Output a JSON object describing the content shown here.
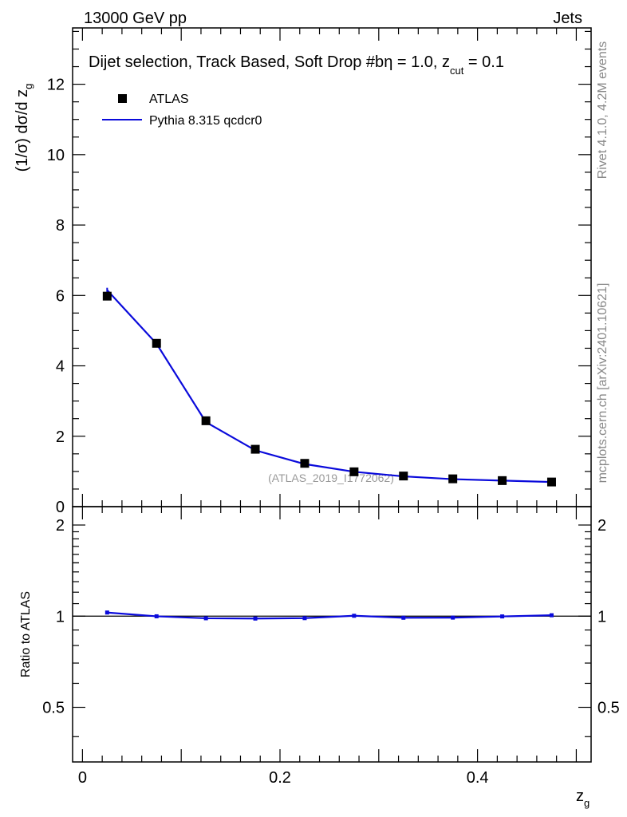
{
  "header": {
    "left": "13000 GeV pp",
    "right": "Jets"
  },
  "side_labels": {
    "rivet": "Rivet 4.1.0,  4.2M events",
    "mcplots": "mcplots.cern.ch [arXiv:2401.10621]"
  },
  "colors": {
    "data": "#000000",
    "mc": "#0a0adb",
    "axis": "#000000",
    "watermark": "#999999",
    "side_text": "#888888"
  },
  "chart_data": {
    "type": "line",
    "title": "Dijet selection, Track Based, Soft Drop #b",
    "title_suffix": "η = 1.0, z",
    "title_sub": "cut",
    "title_end": " = 0.1",
    "watermark": "(ATLAS_2019_I1772062)",
    "xlabel": "z",
    "xlabel_sub": "g",
    "ylabel": "(1/σ) dσ/d z",
    "ylabel_sub": "g",
    "ratio_ylabel": "Ratio to ATLAS",
    "xlim": [
      -0.01,
      0.515
    ],
    "ylim": [
      0,
      13.6
    ],
    "ratio_ylim": [
      0.33,
      2.3
    ],
    "x_ticks": [
      0,
      0.2,
      0.4
    ],
    "x_tick_labels": [
      "0",
      "0.2",
      "0.4"
    ],
    "y_ticks": [
      0,
      2,
      4,
      6,
      8,
      10,
      12
    ],
    "y_tick_labels": [
      "0",
      "2",
      "4",
      "6",
      "8",
      "10",
      "12"
    ],
    "ratio_ticks": [
      0.5,
      1,
      2
    ],
    "ratio_tick_labels": [
      "0.5",
      "1",
      "2"
    ],
    "legend_position": "top-left",
    "x": [
      0.025,
      0.075,
      0.125,
      0.175,
      0.225,
      0.275,
      0.325,
      0.375,
      0.425,
      0.475
    ],
    "series": [
      {
        "name": "ATLAS",
        "style": "markers",
        "values": [
          5.98,
          4.64,
          2.44,
          1.63,
          1.23,
          0.99,
          0.87,
          0.79,
          0.74,
          0.7
        ]
      },
      {
        "name": "Pythia 8.315 qcdcr0",
        "style": "line",
        "values": [
          6.15,
          4.63,
          2.4,
          1.6,
          1.21,
          0.99,
          0.86,
          0.78,
          0.74,
          0.7
        ]
      }
    ],
    "ratio": [
      1.028,
      0.999,
      0.984,
      0.982,
      0.985,
      1.003,
      0.988,
      0.989,
      0.998,
      1.007
    ]
  }
}
